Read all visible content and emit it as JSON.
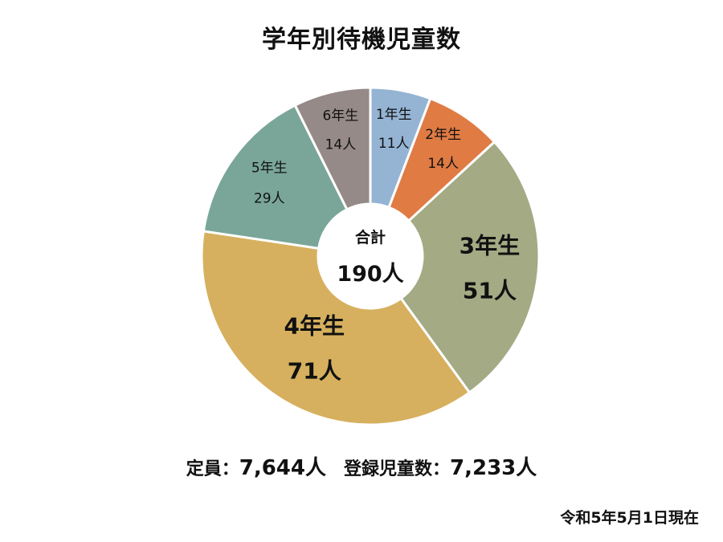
{
  "chart_data": {
    "type": "pie",
    "title": "学年別待機児童数",
    "categories": [
      "1年生",
      "2年生",
      "3年生",
      "4年生",
      "5年生",
      "6年生"
    ],
    "values": [
      11,
      14,
      51,
      71,
      29,
      14
    ],
    "value_labels": [
      "11人",
      "14人",
      "51人",
      "71人",
      "29人",
      "14人"
    ],
    "colors": [
      "#95B4D3",
      "#E07B44",
      "#A3AA84",
      "#D6B05E",
      "#7AA69A",
      "#958A87"
    ],
    "center_label": "合計",
    "center_value": "190人"
  },
  "summary": {
    "capacity_label": "定員：",
    "capacity_value": "7,644人",
    "registered_label": "登録児童数：",
    "registered_value": "7,233人"
  },
  "as_of": "令和5年5月1日現在"
}
